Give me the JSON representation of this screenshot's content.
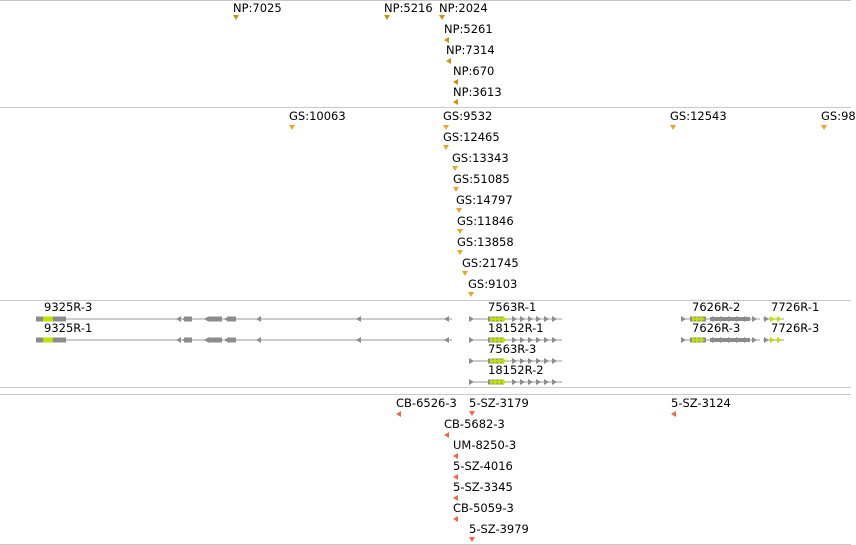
{
  "np_track": {
    "features": [
      "NP:7025",
      "NP:5216",
      "NP:2024",
      "NP:5261",
      "NP:7314",
      "NP:670",
      "NP:3613"
    ]
  },
  "gs_track": {
    "features": [
      "GS:10063",
      "GS:9532",
      "GS:12543",
      "GS:98",
      "GS:12465",
      "GS:13343",
      "GS:51085",
      "GS:14797",
      "GS:11846",
      "GS:13858",
      "GS:21745",
      "GS:9103"
    ]
  },
  "gene_track": {
    "genes": [
      "9325R-3",
      "9325R-1",
      "7563R-1",
      "18152R-1",
      "7563R-3",
      "18152R-2",
      "7626R-2",
      "7626R-3",
      "7726R-1",
      "7726R-3"
    ],
    "colors": {
      "intron": "#999999",
      "exon": "#8c8c8c",
      "utr": "#bfe000"
    }
  },
  "probe_track": {
    "features": [
      "CB-6526-3",
      "5-SZ-3179",
      "5-SZ-3124",
      "CB-5682-3",
      "UM-8250-3",
      "5-SZ-4016",
      "5-SZ-3345",
      "CB-5059-3",
      "5-SZ-3979"
    ]
  }
}
